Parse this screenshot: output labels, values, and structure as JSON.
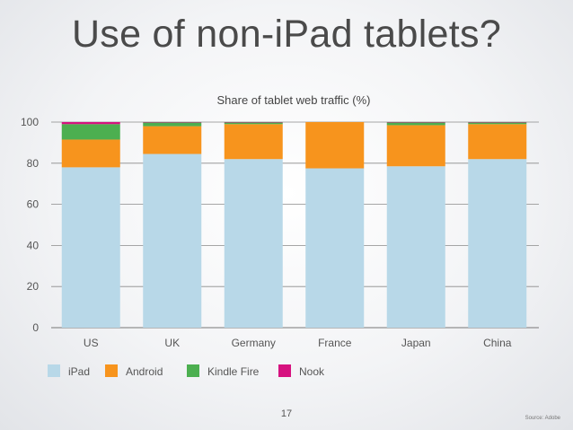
{
  "slide": {
    "title": "Use of non-iPad tablets?",
    "page_number": "17",
    "source": "Source: Adobe"
  },
  "chart_data": {
    "type": "bar",
    "stacked": true,
    "title": "Share of tablet web traffic (%)",
    "xlabel": "",
    "ylabel": "",
    "categories": [
      "US",
      "UK",
      "Germany",
      "France",
      "Japan",
      "China"
    ],
    "series": [
      {
        "name": "iPad",
        "color": "#b8d8e8",
        "values": [
          78,
          84.5,
          82,
          77.5,
          78.5,
          82
        ]
      },
      {
        "name": "Android",
        "color": "#f7941d",
        "values": [
          13.5,
          13.5,
          17,
          22.5,
          20,
          17
        ]
      },
      {
        "name": "Kindle Fire",
        "color": "#4caf50",
        "values": [
          7.5,
          1.8,
          0.8,
          0,
          1.3,
          0.8
        ]
      },
      {
        "name": "Nook",
        "color": "#d6127f",
        "values": [
          1,
          0.2,
          0.2,
          0,
          0.2,
          0.2
        ]
      }
    ],
    "yticks": [
      0,
      20,
      40,
      60,
      80,
      100
    ],
    "ylim": [
      0,
      100
    ],
    "grid": true,
    "legend_position": "bottom-left"
  }
}
